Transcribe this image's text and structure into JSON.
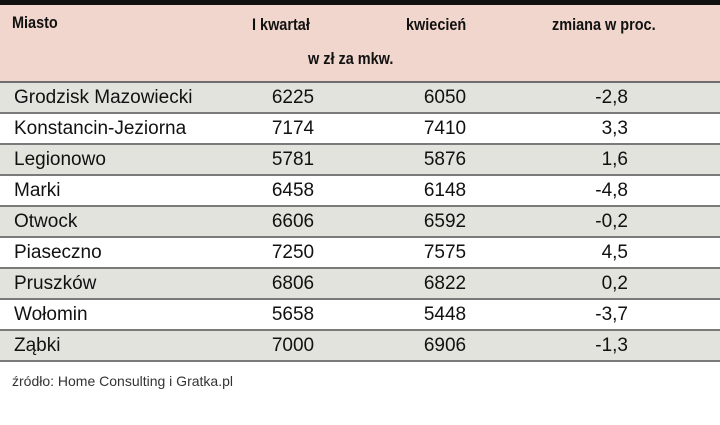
{
  "header": {
    "city": "Miasto",
    "q1": "I kwartał",
    "april": "kwiecień",
    "change": "zmiana w proc.",
    "unit": "w zł za mkw."
  },
  "rows": [
    {
      "city": "Grodzisk Mazowiecki",
      "q1": "6225",
      "april": "6050",
      "change": "-2,8"
    },
    {
      "city": "Konstancin-Jeziorna",
      "q1": "7174",
      "april": "7410",
      "change": "3,3"
    },
    {
      "city": "Legionowo",
      "q1": "5781",
      "april": "5876",
      "change": "1,6"
    },
    {
      "city": "Marki",
      "q1": "6458",
      "april": "6148",
      "change": "-4,8"
    },
    {
      "city": "Otwock",
      "q1": "6606",
      "april": "6592",
      "change": "-0,2"
    },
    {
      "city": "Piaseczno",
      "q1": "7250",
      "april": "7575",
      "change": "4,5"
    },
    {
      "city": "Pruszków",
      "q1": "6806",
      "april": "6822",
      "change": "0,2"
    },
    {
      "city": "Wołomin",
      "q1": "5658",
      "april": "5448",
      "change": "-3,7"
    },
    {
      "city": "Ząbki",
      "q1": "7000",
      "april": "6906",
      "change": "-1,3"
    }
  ],
  "source": "źródło: Home Consulting i Gratka.pl"
}
